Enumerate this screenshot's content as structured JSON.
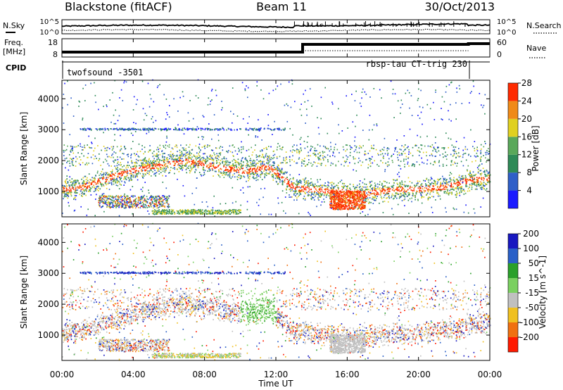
{
  "header": {
    "radar": "Blackstone (fitACF)",
    "beam": "Beam 11",
    "date": "30/Oct/2013"
  },
  "top_panels": {
    "nsky_label": "N.Sky",
    "nsky_ticks": [
      "10^5",
      "10^0"
    ],
    "nsearch_label": "N.Search",
    "nsearch_ticks": [
      "10^5",
      "10^0"
    ],
    "freq_label_line1": "Freq.",
    "freq_label_line2": "[MHz]",
    "freq_ticks": [
      "18",
      "8"
    ],
    "nave_label": "Nave",
    "nave_ticks": [
      "60",
      "0"
    ],
    "cpid_label": "CPID",
    "cpid_left": "twofsound -3501",
    "cpid_right": "rbsp-tau CT-trig 230"
  },
  "x_axis": {
    "label": "Time UT",
    "ticks": [
      "00:00",
      "04:00",
      "08:00",
      "12:00",
      "16:00",
      "20:00",
      "00:00"
    ]
  },
  "chart_data": [
    {
      "type": "heatmap",
      "panel": "power",
      "ylabel": "Slant Range [km]",
      "yticks": [
        1000,
        2000,
        3000,
        4000
      ],
      "ylim": [
        180,
        4600
      ],
      "xlim_hours": [
        0,
        24
      ],
      "colorbar": {
        "label": "Power [dB]",
        "ticks": [
          4,
          8,
          12,
          16,
          20,
          24,
          28
        ],
        "colors": [
          "#1a1aff",
          "#2f5fc8",
          "#2e8a57",
          "#5aa85a",
          "#e0d020",
          "#f08a18",
          "#ff2a00"
        ]
      },
      "main_band": {
        "t_hours": [
          0,
          1,
          2,
          3,
          4,
          5,
          6,
          7,
          8,
          9,
          10,
          11,
          11.5,
          12,
          13,
          14,
          15,
          16,
          17,
          18,
          19,
          20,
          21,
          22,
          22.8,
          24
        ],
        "range_km": [
          1050,
          1100,
          1300,
          1500,
          1650,
          1800,
          1900,
          1950,
          1850,
          1750,
          1650,
          1700,
          1800,
          1600,
          1100,
          1050,
          1000,
          950,
          900,
          1000,
          1050,
          1050,
          1100,
          1200,
          1350,
          1400
        ]
      }
    },
    {
      "type": "heatmap",
      "panel": "velocity",
      "ylabel": "Slant Range [km]",
      "yticks": [
        1000,
        2000,
        3000,
        4000
      ],
      "ylim": [
        180,
        4600
      ],
      "xlim_hours": [
        0,
        24
      ],
      "colorbar": {
        "label": "Velocity [m s^-1]",
        "ticks": [
          200,
          100,
          50,
          15,
          -15,
          -50,
          -100,
          -200
        ],
        "colors": [
          "#1818c0",
          "#2a60c8",
          "#2aa02a",
          "#7ad060",
          "#c0c0c0",
          "#f0c020",
          "#f07010",
          "#ff1a00"
        ]
      }
    }
  ]
}
